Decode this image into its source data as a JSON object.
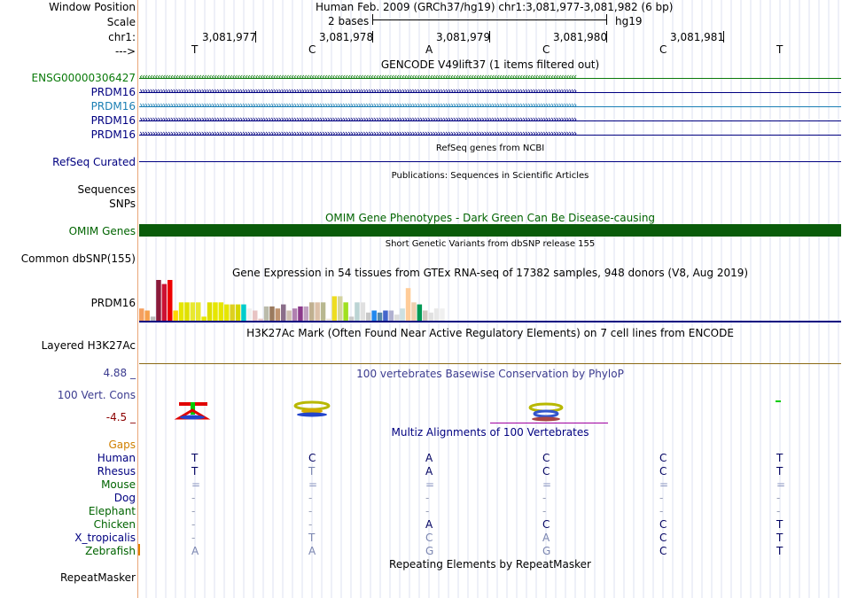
{
  "header": {
    "window_position_label": "Window Position",
    "scale_label": "Scale",
    "chrom_label": "chr1:",
    "arrow_label": "--->",
    "assembly_title": "Human Feb. 2009 (GRCh37/hg19)   chr1:3,081,977-3,081,982 (6 bp)",
    "scale_text": "2 bases",
    "scale_db": "hg19",
    "positions": [
      "3,081,977",
      "3,081,978",
      "3,081,979",
      "3,081,980",
      "3,081,981"
    ],
    "bases": [
      "T",
      "C",
      "A",
      "C",
      "C",
      "T"
    ]
  },
  "gencode": {
    "title": "GENCODE V49lift37 (1 items filtered out)",
    "tracks": [
      {
        "name": "ENSG00000306427",
        "color": "#0a7a0a",
        "arrow": "‹"
      },
      {
        "name": "PRDM16",
        "color": "#000080",
        "arrow": "›"
      },
      {
        "name": "PRDM16",
        "color": "#1b7fb4",
        "arrow": "›"
      },
      {
        "name": "PRDM16",
        "color": "#000080",
        "arrow": "›"
      },
      {
        "name": "PRDM16",
        "color": "#000080",
        "arrow": "›"
      }
    ]
  },
  "refseq": {
    "title": "RefSeq genes from NCBI",
    "label": "RefSeq Curated"
  },
  "publications": {
    "title": "Publications: Sequences in Scientific Articles",
    "label_sequences": "Sequences",
    "label_snps": "SNPs"
  },
  "omim": {
    "title": "OMIM Gene Phenotypes - Dark Green Can Be Disease-causing",
    "label": "OMIM Genes",
    "bar_color": "#0a5c0a"
  },
  "dbsnp": {
    "title": "Short Genetic Variants from dbSNP release 155",
    "label": "Common dbSNP(155)"
  },
  "gtex": {
    "title": "Gene Expression in 54 tissues from GTEx RNA-seq of 17382 samples, 948 donors (V8, Aug 2019)",
    "label": "PRDM16",
    "values": [
      0.3,
      0.25,
      0.1,
      1.0,
      0.9,
      1.0,
      0.25,
      0.45,
      0.45,
      0.45,
      0.45,
      0.1,
      0.45,
      0.45,
      0.45,
      0.4,
      0.4,
      0.4,
      0.4,
      0.3,
      0.25,
      0.05,
      0.35,
      0.35,
      0.3,
      0.4,
      0.25,
      0.3,
      0.35,
      0.35,
      0.45,
      0.45,
      0.45,
      0.05,
      0.6,
      0.6,
      0.45,
      0.1,
      0.45,
      0.45,
      0.2,
      0.25,
      0.2,
      0.25,
      0.25,
      0.15,
      0.3,
      0.8,
      0.45,
      0.4,
      0.25,
      0.2,
      0.3,
      0.3
    ],
    "colors": [
      "#f4a060",
      "#f6a04d",
      "#bbb",
      "#8b1a3a",
      "#cc1133",
      "#ee0000",
      "#ffd700",
      "#e6e600",
      "#e0e000",
      "#e8e830",
      "#e8e830",
      "#e6e600",
      "#dede00",
      "#e6e600",
      "#e6e600",
      "#e6e600",
      "#ddd020",
      "#d7d700",
      "#00cccc",
      "#f0f0f0",
      "#e8c4c4",
      "#e6c4c4",
      "#bba",
      "#9a7a5e",
      "#c09470",
      "#8a6e8a",
      "#cfbfb0",
      "#b080b0",
      "#8b3a8b",
      "#c0a0c0",
      "#c0b090",
      "#dcc0a8",
      "#b8b890",
      "#ebe4d8",
      "#eedd20",
      "#d4d4a0",
      "#a0e020",
      "#c8c8c8",
      "#bbd4d4",
      "#e0e0e0",
      "#c8c8c8",
      "#2288ee",
      "#5588aa",
      "#4466cc",
      "#b0b0d0",
      "#dcdcdc",
      "#cce0e0",
      "#ffcc99",
      "#eed0b0",
      "#009955",
      "#d0c8c0",
      "#e0e0e0",
      "#e8e8e8",
      "#f0f0f0"
    ]
  },
  "h3k27ac": {
    "title": "H3K27Ac Mark (Often Found Near Active Regulatory Elements) on 7 cell lines from ENCODE",
    "label": "Layered H3K27Ac"
  },
  "phylop": {
    "title": "100 vertebrates Basewise Conservation by PhyloP",
    "label": "100 Vert. Cons",
    "max": "4.88 _",
    "min": "-4.5 _"
  },
  "multiz": {
    "title": "Multiz Alignments of 100 Vertebrates",
    "gaps_label": "Gaps",
    "species": [
      {
        "name": "Human",
        "color": "#000080",
        "bases": [
          "T",
          "C",
          "A",
          "C",
          "C",
          "T"
        ]
      },
      {
        "name": "Rhesus",
        "color": "#000080",
        "bases": [
          "T",
          "T",
          "A",
          "C",
          "C",
          "T"
        ]
      },
      {
        "name": "Mouse",
        "color": "#006400",
        "bases": [
          "=",
          "=",
          "=",
          "=",
          "=",
          "="
        ]
      },
      {
        "name": "Dog",
        "color": "#000080",
        "bases": [
          "-",
          "-",
          "-",
          "-",
          "-",
          "-"
        ]
      },
      {
        "name": "Elephant",
        "color": "#006400",
        "bases": [
          "-",
          "-",
          "-",
          "-",
          "-",
          "-"
        ]
      },
      {
        "name": "Chicken",
        "color": "#006400",
        "bases": [
          "-",
          "-",
          "A",
          "C",
          "C",
          "T"
        ]
      },
      {
        "name": "X_tropicalis",
        "color": "#000080",
        "bases": [
          "-",
          "T",
          "C",
          "A",
          "C",
          "T"
        ]
      },
      {
        "name": "Zebrafish",
        "color": "#006400",
        "bases": [
          "A",
          "A",
          "G",
          "G",
          "C",
          "T"
        ]
      }
    ]
  },
  "repeatmasker": {
    "title": "Repeating Elements by RepeatMasker",
    "label": "RepeatMasker"
  }
}
